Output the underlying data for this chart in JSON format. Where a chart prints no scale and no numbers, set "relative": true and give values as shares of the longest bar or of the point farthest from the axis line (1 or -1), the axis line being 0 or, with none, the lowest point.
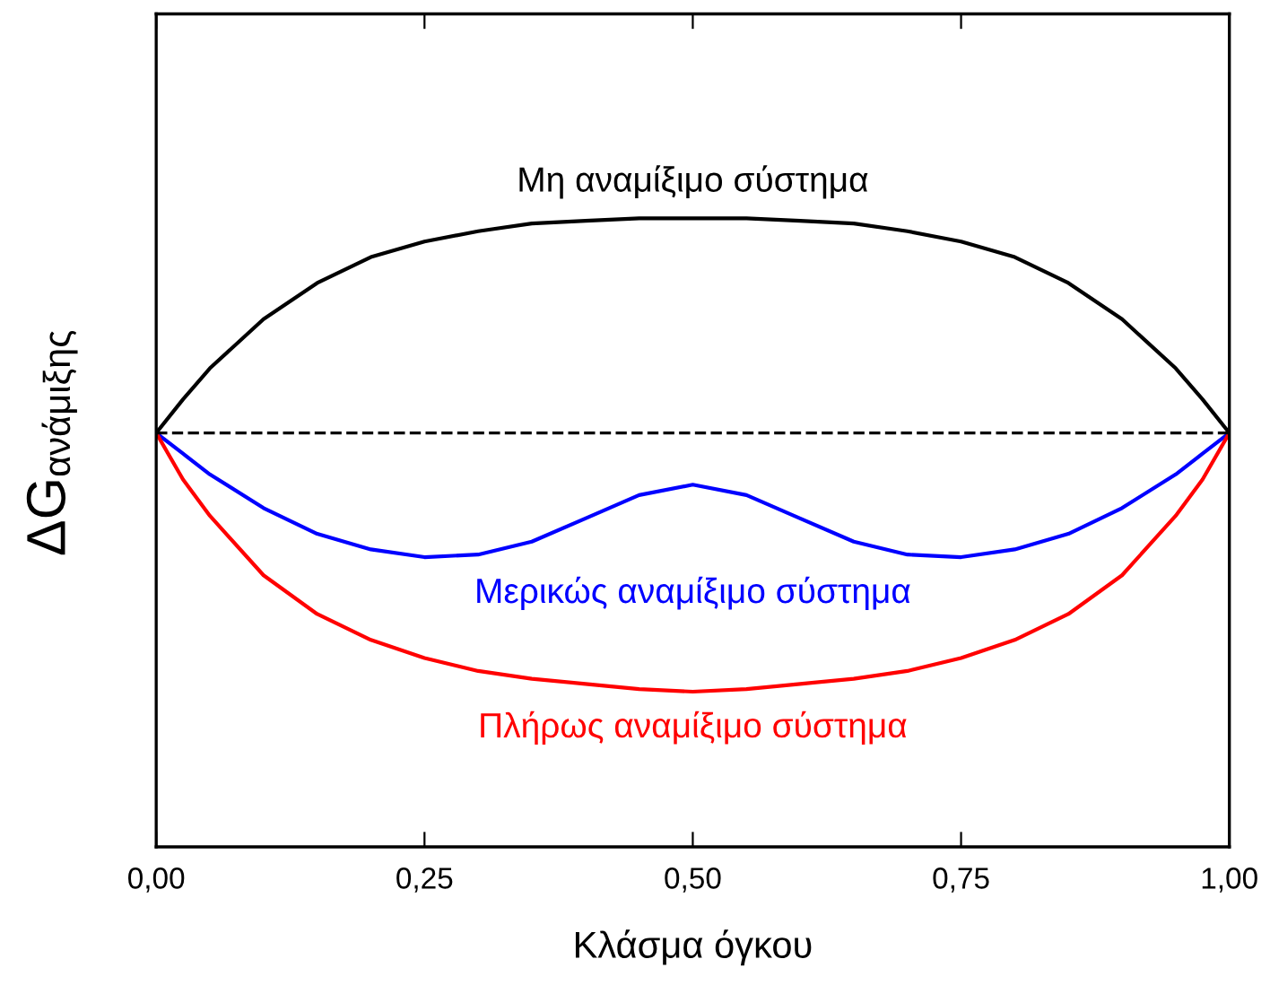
{
  "chart_data": {
    "type": "line",
    "relative": true,
    "xlabel": "Κλάσμα όγκου",
    "ylabel": "ΔG$_{ανάμιξης}$",
    "x": [
      0,
      0.025,
      0.05,
      0.1,
      0.15,
      0.2,
      0.25,
      0.3,
      0.35,
      0.4,
      0.45,
      0.5,
      0.55,
      0.6,
      0.65,
      0.7,
      0.75,
      0.8,
      0.85,
      0.9,
      0.95,
      0.975,
      1
    ],
    "series": [
      {
        "name": "Μη αναμίξιμο σύστημα",
        "color": "#000000",
        "values": [
          0,
          0.13,
          0.25,
          0.44,
          0.58,
          0.68,
          0.74,
          0.78,
          0.81,
          0.82,
          0.83,
          0.83,
          0.83,
          0.82,
          0.81,
          0.78,
          0.74,
          0.68,
          0.58,
          0.44,
          0.25,
          0.13,
          0
        ]
      },
      {
        "name": "Μερικώς αναμίξιμο σύστημα",
        "color": "#0000ff",
        "values": [
          0,
          -0.08,
          -0.16,
          -0.29,
          -0.39,
          -0.45,
          -0.48,
          -0.47,
          -0.42,
          -0.33,
          -0.24,
          -0.2,
          -0.24,
          -0.33,
          -0.42,
          -0.47,
          -0.48,
          -0.45,
          -0.39,
          -0.29,
          -0.16,
          -0.08,
          0
        ]
      },
      {
        "name": "Πλήρως αναμίξιμο σύστημα",
        "color": "#ff0000",
        "values": [
          0,
          -0.18,
          -0.32,
          -0.55,
          -0.7,
          -0.8,
          -0.87,
          -0.92,
          -0.95,
          -0.97,
          -0.99,
          -1,
          -0.99,
          -0.97,
          -0.95,
          -0.92,
          -0.87,
          -0.8,
          -0.7,
          -0.55,
          -0.32,
          -0.18,
          0
        ]
      }
    ],
    "xlim": [
      0,
      1
    ],
    "xticks": [
      {
        "value": 0,
        "label": "0,00"
      },
      {
        "value": 0.25,
        "label": "0,25"
      },
      {
        "value": 0.5,
        "label": "0,50"
      },
      {
        "value": 0.75,
        "label": "0,75"
      },
      {
        "value": 1,
        "label": "1,00"
      }
    ],
    "ref_lines": [
      {
        "axis": "y",
        "value": 0,
        "color": "#000000",
        "line_style": "dashed"
      }
    ],
    "grid": false,
    "marker": "none",
    "line_style": "solid",
    "tick_labels": "x"
  }
}
